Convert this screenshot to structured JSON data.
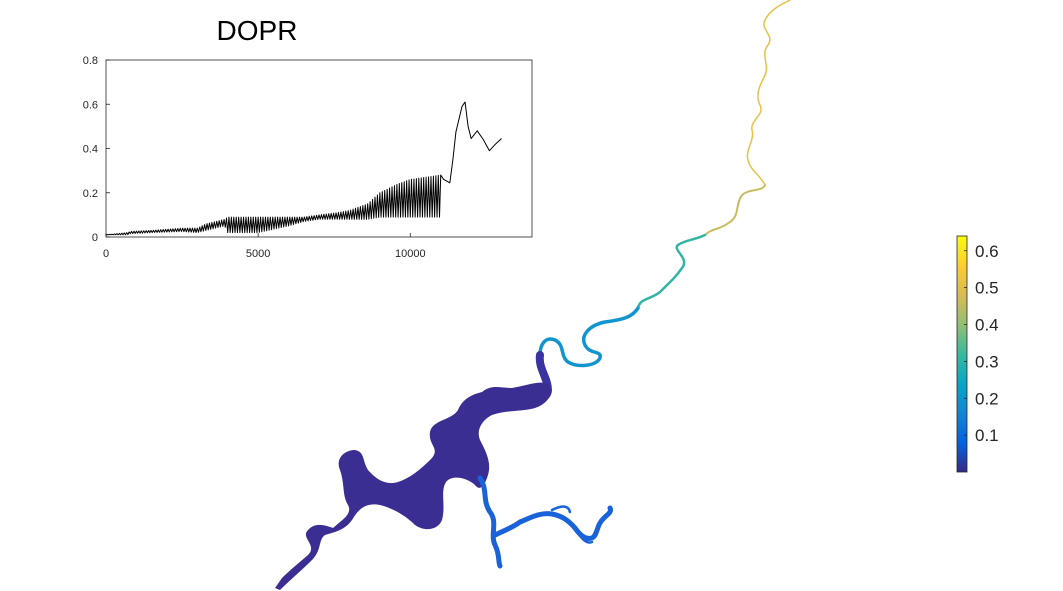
{
  "chart_data": [
    {
      "type": "line",
      "title": "DOPR",
      "xlabel": "",
      "ylabel": "",
      "xlim": [
        0,
        14000
      ],
      "ylim": [
        0,
        0.8
      ],
      "xticks": [
        0,
        5000,
        10000
      ],
      "xtick_labels": [
        "0",
        "5000",
        "10000"
      ],
      "yticks": [
        0,
        0.2,
        0.4,
        0.6,
        0.8
      ],
      "ytick_labels": [
        "0",
        "0.2",
        "0.4",
        "0.6",
        "0.8"
      ],
      "grid": false,
      "line_color": "#000000",
      "x": [
        0,
        700,
        800,
        1500,
        2500,
        3000,
        3300,
        3600,
        3900,
        4000,
        5000,
        6000,
        6500,
        7000,
        7600,
        8000,
        8600,
        9000,
        9600,
        10000,
        10500,
        11000,
        11100,
        11300,
        11400,
        11500,
        11700,
        11800,
        11900,
        12000,
        12200,
        12400,
        12600,
        12800,
        13000
      ],
      "y_low": [
        0.01,
        0.01,
        0.015,
        0.02,
        0.025,
        0.02,
        0.03,
        0.04,
        0.05,
        0.02,
        0.02,
        0.05,
        0.07,
        0.08,
        0.08,
        0.08,
        0.08,
        0.09,
        0.09,
        0.09,
        0.09,
        0.09,
        0.24,
        0.23,
        0.25,
        0.45,
        0.55,
        0.6,
        0.5,
        0.44,
        0.45,
        0.4,
        0.35,
        0.4,
        0.42
      ],
      "y_high": [
        0.01,
        0.02,
        0.025,
        0.03,
        0.04,
        0.04,
        0.06,
        0.07,
        0.08,
        0.09,
        0.09,
        0.09,
        0.09,
        0.1,
        0.11,
        0.12,
        0.15,
        0.2,
        0.24,
        0.26,
        0.27,
        0.28,
        0.28,
        0.26,
        0.45,
        0.5,
        0.63,
        0.62,
        0.5,
        0.45,
        0.51,
        0.48,
        0.43,
        0.44,
        0.47
      ]
    },
    {
      "type": "map",
      "colormap": "parula",
      "colorbar_ticks": [
        0.1,
        0.2,
        0.3,
        0.4,
        0.5,
        0.6
      ],
      "colorbar_tick_labels": [
        "0.1",
        "0.2",
        "0.3",
        "0.4",
        "0.5",
        "0.6"
      ],
      "colorbar_range": [
        0,
        0.64
      ],
      "colormap_stops": [
        "#352a87",
        "#0363e1",
        "#1485d4",
        "#06a7c6",
        "#38b99e",
        "#92bf73",
        "#d9ba56",
        "#fcce2e",
        "#f9fb0e"
      ],
      "river_colors": {
        "lake": "#3a2e92",
        "lower_channel": "#3b33a0",
        "east_branch": "#1a62d9",
        "mid_river": "#1295cf",
        "upper_river": "#33b5a4",
        "high_river": "#c9bc60",
        "top_river": "#e8c04a"
      }
    }
  ]
}
